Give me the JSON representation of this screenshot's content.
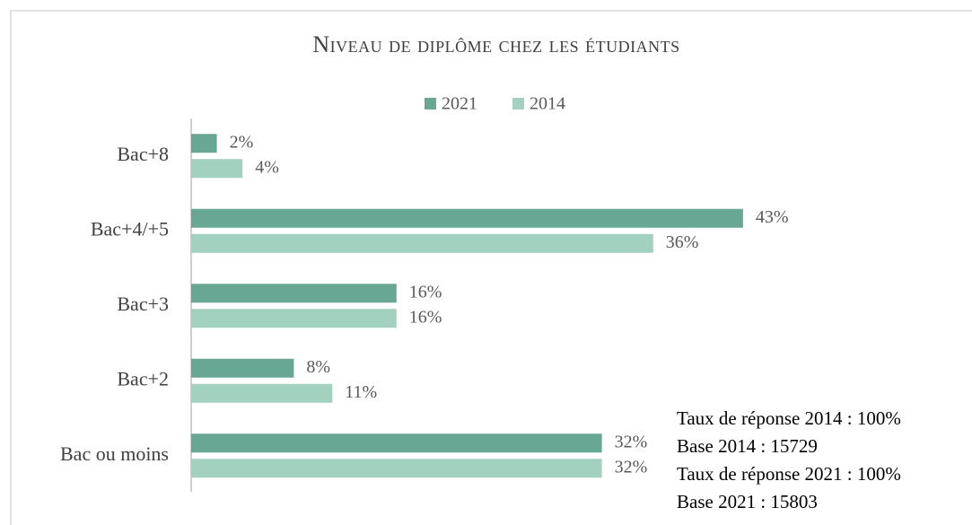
{
  "chart_data": {
    "type": "bar",
    "orientation": "horizontal",
    "title": "Niveau de diplôme chez les étudiants",
    "categories": [
      "Bac+8",
      "Bac+4/+5",
      "Bac+3",
      "Bac+2",
      "Bac ou moins"
    ],
    "series": [
      {
        "name": "2021",
        "color": "#68a793",
        "values": [
          2,
          43,
          16,
          8,
          32
        ],
        "value_labels": [
          "2%",
          "43%",
          "16%",
          "8%",
          "32%"
        ]
      },
      {
        "name": "2014",
        "color": "#a3d1c0",
        "values": [
          4,
          36,
          16,
          11,
          32
        ],
        "value_labels": [
          "4%",
          "36%",
          "16%",
          "11%",
          "32%"
        ]
      }
    ],
    "legend": "top",
    "annotations": [
      "Taux de réponse 2014 : 100%",
      "Base 2014 : 15729",
      "Taux de réponse 2021 : 100%",
      "Base 2021 : 15803"
    ]
  }
}
